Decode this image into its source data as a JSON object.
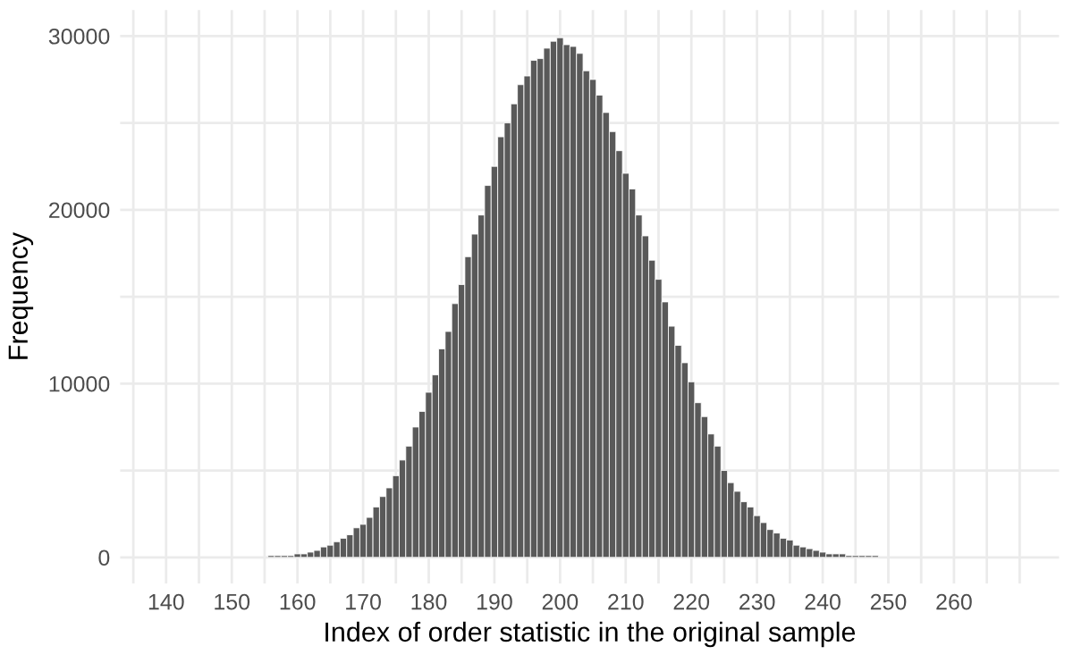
{
  "chart_data": {
    "type": "histogram",
    "xlabel": "Index of order statistic in the original sample",
    "ylabel": "Frequency",
    "bins": [
      139.5,
      140.5,
      141.5,
      142.5,
      143.5,
      144.5,
      145.5,
      146.5,
      147.5,
      148.5,
      149.5,
      150.5,
      151.5,
      152.5,
      153.5,
      154.5,
      155.5,
      156.5,
      157.5,
      158.5,
      159.5,
      160.5,
      161.5,
      162.5,
      163.5,
      164.5,
      165.5,
      166.5,
      167.5,
      168.5,
      169.5,
      170.5,
      171.5,
      172.5,
      173.5,
      174.5,
      175.5,
      176.5,
      177.5,
      178.5,
      179.5,
      180.5,
      181.5,
      182.5,
      183.5,
      184.5,
      185.5,
      186.5,
      187.5,
      188.5,
      189.5,
      190.5,
      191.5,
      192.5,
      193.5,
      194.5,
      195.5,
      196.5,
      197.5,
      198.5,
      199.5,
      200.5,
      201.5,
      202.5,
      203.5,
      204.5,
      205.5,
      206.5,
      207.5,
      208.5,
      209.5,
      210.5,
      211.5,
      212.5,
      213.5,
      214.5,
      215.5,
      216.5,
      217.5,
      218.5,
      219.5,
      220.5,
      221.5,
      222.5,
      223.5,
      224.5,
      225.5,
      226.5,
      227.5,
      228.5,
      229.5,
      230.5,
      231.5,
      232.5,
      233.5,
      234.5,
      235.5,
      236.5,
      237.5,
      238.5,
      239.5,
      240.5,
      241.5,
      242.5,
      243.5,
      244.5,
      245.5,
      246.5,
      247.5,
      248.5,
      249.5,
      250.5,
      251.5,
      252.5,
      253.5,
      254.5,
      255.5,
      256.5,
      257.5,
      258.5,
      259.5,
      260.5,
      261.5,
      262.5,
      263.5,
      264.5,
      265.5,
      266.5,
      267.5,
      268.5
    ],
    "values": [
      0,
      0,
      0,
      0,
      0,
      0,
      0,
      0,
      0,
      0,
      0,
      0,
      0,
      0,
      0,
      0,
      100,
      100,
      100,
      100,
      200,
      200,
      300,
      400,
      600,
      700,
      900,
      1100,
      1300,
      1700,
      1900,
      2300,
      2900,
      3500,
      4000,
      4700,
      5600,
      6400,
      7500,
      8400,
      9500,
      10500,
      12000,
      13000,
      14600,
      15700,
      17300,
      18600,
      19700,
      21400,
      22500,
      24200,
      25000,
      26100,
      27200,
      27700,
      28600,
      28700,
      29300,
      29700,
      29900,
      29500,
      29400,
      29000,
      28000,
      27500,
      26600,
      25600,
      24500,
      23400,
      22100,
      21200,
      19700,
      18500,
      17100,
      16000,
      14700,
      13300,
      12200,
      11200,
      10100,
      8900,
      8100,
      7100,
      6400,
      5000,
      4300,
      3800,
      3200,
      2900,
      2400,
      2000,
      1600,
      1400,
      1100,
      1000,
      700,
      600,
      500,
      400,
      300,
      200,
      200,
      200,
      100,
      100,
      100,
      100,
      100,
      0,
      0,
      0,
      0,
      0,
      0,
      0,
      0,
      0,
      0,
      0,
      0,
      0,
      0,
      0,
      0,
      0,
      0,
      0,
      0
    ],
    "color": "#595959",
    "xlim": [
      133,
      276
    ],
    "ylim": [
      -1500,
      31500
    ],
    "xticks": [
      140,
      {
        "value": 145,
        "label": null
      },
      150,
      {
        "value": 155,
        "label": null
      },
      160,
      {
        "value": 165,
        "label": null
      },
      170,
      {
        "value": 175,
        "label": null
      },
      180,
      {
        "value": 185,
        "label": null
      },
      190,
      {
        "value": 195,
        "label": null
      },
      200,
      {
        "value": 205,
        "label": null
      },
      210,
      {
        "value": 215,
        "label": null
      },
      220,
      {
        "value": 225,
        "label": null
      },
      230,
      {
        "value": 235,
        "label": null
      },
      240,
      {
        "value": 245,
        "label": null
      },
      250,
      {
        "value": 255,
        "label": null
      },
      260,
      {
        "value": 265,
        "label": null
      },
      {
        "value": 135,
        "label": null
      },
      {
        "value": 270,
        "label": null
      }
    ],
    "yticks": [
      0,
      {
        "value": 5000,
        "label": null
      },
      10000,
      {
        "value": 15000,
        "label": null
      },
      20000,
      {
        "value": 25000,
        "label": null
      },
      30000
    ],
    "grid": true,
    "legend": false
  }
}
